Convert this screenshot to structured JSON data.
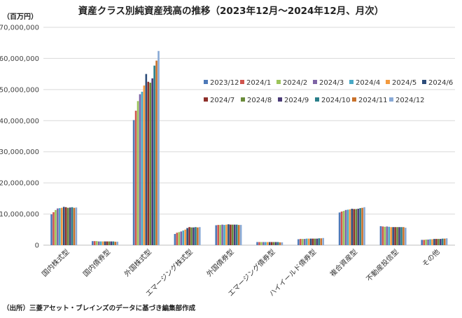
{
  "chart_data": {
    "type": "bar",
    "title": "資産クラス別純資産残高の推移（2023年12月～2024年12月、月次）",
    "unit_label": "（百万円）",
    "source": "（出所）三菱アセット・ブレインズのデータに基づき編集部作成",
    "ylim": [
      0,
      70000000
    ],
    "y_ticks": [
      "0",
      "10,000,000",
      "20,000,000",
      "30,000,000",
      "40,000,000",
      "50,000,000",
      "60,000,000",
      "70,000,000"
    ],
    "grid": true,
    "legend_position": "top-right",
    "categories": [
      "国内株式型",
      "国内債券型",
      "外国株式型",
      "エマージング株式型",
      "外国債券型",
      "エマージング債券型",
      "ハイイールド債券型",
      "複合資産型",
      "不動産投信型",
      "その他"
    ],
    "series": [
      {
        "name": "2023/12",
        "color": "#4e79b8",
        "values": [
          9900000,
          1300000,
          40200000,
          3600000,
          6400000,
          1000000,
          1900000,
          10500000,
          6100000,
          1700000
        ]
      },
      {
        "name": "2024/1",
        "color": "#d0554e",
        "values": [
          10600000,
          1300000,
          43200000,
          4000000,
          6500000,
          1000000,
          2000000,
          10800000,
          6000000,
          1700000
        ]
      },
      {
        "name": "2024/2",
        "color": "#9cc45a",
        "values": [
          11300000,
          1300000,
          46300000,
          4200000,
          6500000,
          1000000,
          2000000,
          11000000,
          5900000,
          1800000
        ]
      },
      {
        "name": "2024/3",
        "color": "#7e64a6",
        "values": [
          11800000,
          1200000,
          48500000,
          4400000,
          6600000,
          1000000,
          2000000,
          11300000,
          6000000,
          1800000
        ]
      },
      {
        "name": "2024/4",
        "color": "#49a9c6",
        "values": [
          11900000,
          1200000,
          49300000,
          4700000,
          6500000,
          1000000,
          2100000,
          11400000,
          5900000,
          1900000
        ]
      },
      {
        "name": "2024/5",
        "color": "#f39a3e",
        "values": [
          12000000,
          1200000,
          51300000,
          5000000,
          6600000,
          1000000,
          2100000,
          11500000,
          5800000,
          1900000
        ]
      },
      {
        "name": "2024/6",
        "color": "#2d4d7a",
        "values": [
          12300000,
          1200000,
          55000000,
          5500000,
          6700000,
          1000000,
          2100000,
          11700000,
          5800000,
          2000000
        ]
      },
      {
        "name": "2024/7",
        "color": "#8e2f2a",
        "values": [
          12200000,
          1200000,
          52500000,
          5800000,
          6600000,
          1000000,
          2100000,
          11600000,
          5800000,
          2000000
        ]
      },
      {
        "name": "2024/8",
        "color": "#6a8b3a",
        "values": [
          12000000,
          1200000,
          52200000,
          5700000,
          6600000,
          1000000,
          2100000,
          11600000,
          5800000,
          2000000
        ]
      },
      {
        "name": "2024/9",
        "color": "#4b3b78",
        "values": [
          12100000,
          1200000,
          53600000,
          5700000,
          6600000,
          1000000,
          2100000,
          11700000,
          5800000,
          2000000
        ]
      },
      {
        "name": "2024/10",
        "color": "#2a7f8a",
        "values": [
          12200000,
          1200000,
          57700000,
          5800000,
          6600000,
          1000000,
          2200000,
          11900000,
          5800000,
          2100000
        ]
      },
      {
        "name": "2024/11",
        "color": "#c9712b",
        "values": [
          12000000,
          1100000,
          59300000,
          5700000,
          6500000,
          900000,
          2200000,
          12000000,
          5800000,
          2100000
        ]
      },
      {
        "name": "2024/12",
        "color": "#88a9d6",
        "values": [
          12100000,
          1100000,
          62400000,
          5800000,
          6500000,
          900000,
          2300000,
          12200000,
          5600000,
          2200000
        ]
      }
    ]
  }
}
